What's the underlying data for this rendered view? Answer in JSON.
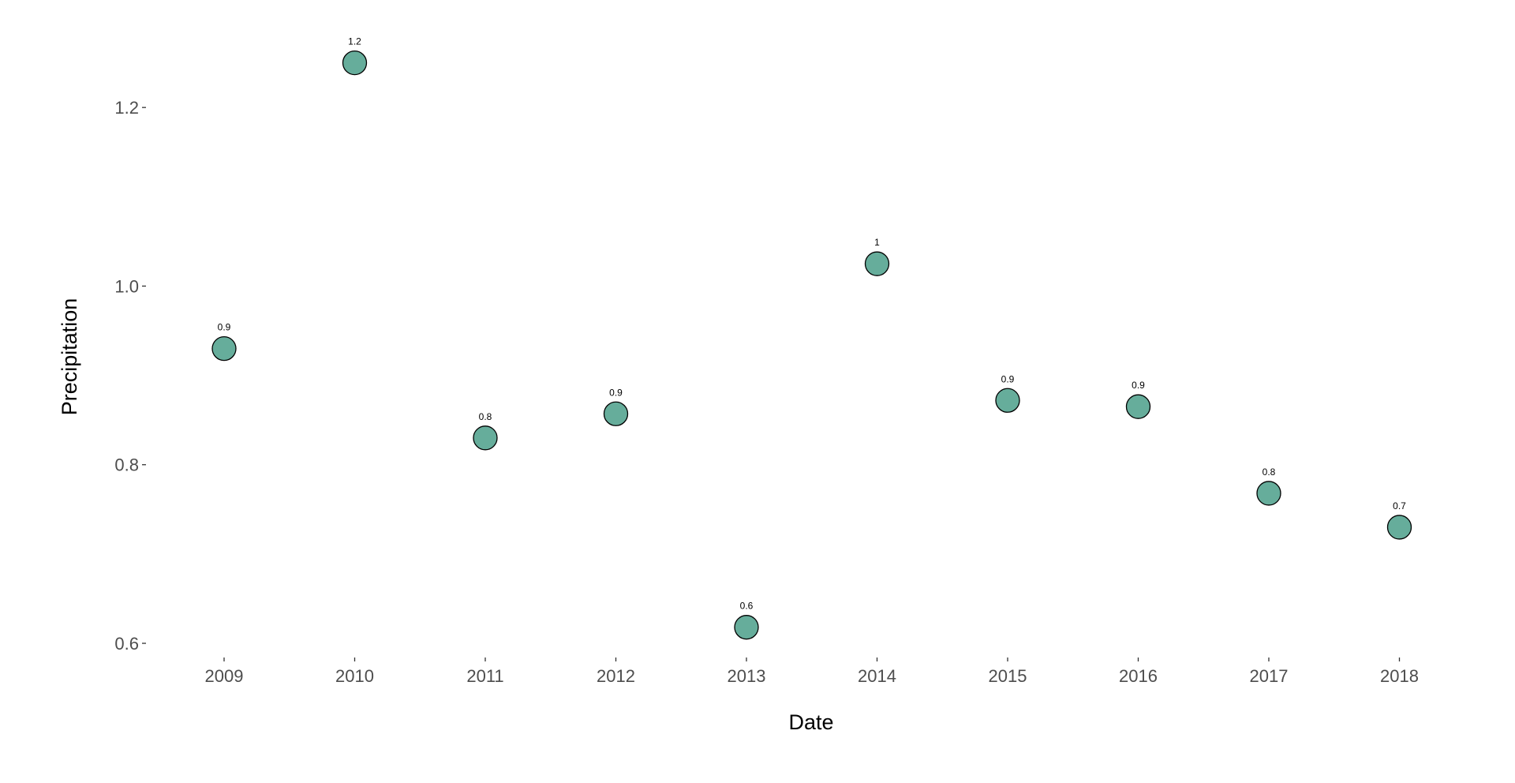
{
  "chart_data": {
    "type": "scatter",
    "title": "",
    "xlabel": "Date",
    "ylabel": "Precipitation",
    "x": [
      "2009",
      "2010",
      "2011",
      "2012",
      "2013",
      "2014",
      "2015",
      "2016",
      "2017",
      "2018"
    ],
    "series": [
      {
        "values": [
          0.93,
          1.25,
          0.83,
          0.857,
          0.618,
          1.025,
          0.872,
          0.865,
          0.768,
          0.73
        ],
        "labels": [
          "0.9",
          "1.2",
          "0.8",
          "0.9",
          "0.6",
          "1",
          "0.9",
          "0.9",
          "0.8",
          "0.7"
        ],
        "color": "#66ad9b",
        "outline_color": "#000000"
      }
    ],
    "y_ticks": [
      0.6,
      0.8,
      1.0,
      1.2
    ],
    "y_tick_labels": [
      "0.6",
      "0.8",
      "1.0",
      "1.2"
    ],
    "ylim": [
      0.585,
      1.285
    ],
    "grid": false,
    "legend": "none",
    "background": "#ffffff"
  }
}
